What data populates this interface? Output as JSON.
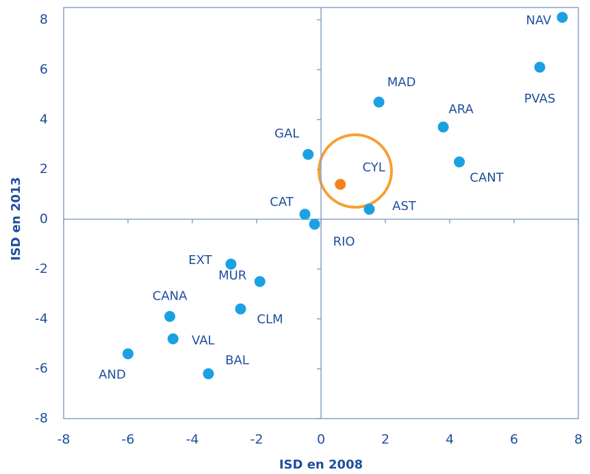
{
  "chart_data": {
    "type": "scatter",
    "x_label": "ISD en 2008",
    "y_label": "ISD en 2013",
    "labels": [
      "NAV",
      "PVAS",
      "MAD",
      "ARA",
      "CANT",
      "GAL",
      "CYL",
      "AST",
      "CAT",
      "RIO",
      "EXT",
      "MUR",
      "CLM",
      "CANA",
      "VAL",
      "AND",
      "BAL"
    ],
    "x": [
      7.5,
      6.8,
      1.8,
      3.8,
      4.3,
      -0.4,
      0.6,
      1.5,
      -0.5,
      -0.2,
      -2.8,
      -1.9,
      -2.5,
      -4.7,
      -4.6,
      -6.0,
      -3.5
    ],
    "y": [
      8.1,
      6.1,
      4.7,
      3.7,
      2.3,
      2.6,
      1.4,
      0.4,
      0.2,
      -0.2,
      -1.8,
      -2.5,
      -3.6,
      -3.9,
      -4.8,
      -5.4,
      -6.2
    ],
    "colors": [
      "#1ba1e2",
      "#1ba1e2",
      "#1ba1e2",
      "#1ba1e2",
      "#1ba1e2",
      "#1ba1e2",
      "#f58220",
      "#1ba1e2",
      "#1ba1e2",
      "#1ba1e2",
      "#1ba1e2",
      "#1ba1e2",
      "#1ba1e2",
      "#1ba1e2",
      "#1ba1e2",
      "#1ba1e2",
      "#1ba1e2"
    ],
    "xlim": [
      -8,
      8
    ],
    "xticks": [
      -8,
      -6,
      -4,
      -2,
      0,
      2,
      4,
      6,
      8
    ],
    "ylim": [
      -8,
      8
    ],
    "yticks": [
      -8,
      -6,
      -4,
      -2,
      0,
      2,
      4,
      6,
      8
    ]
  }
}
